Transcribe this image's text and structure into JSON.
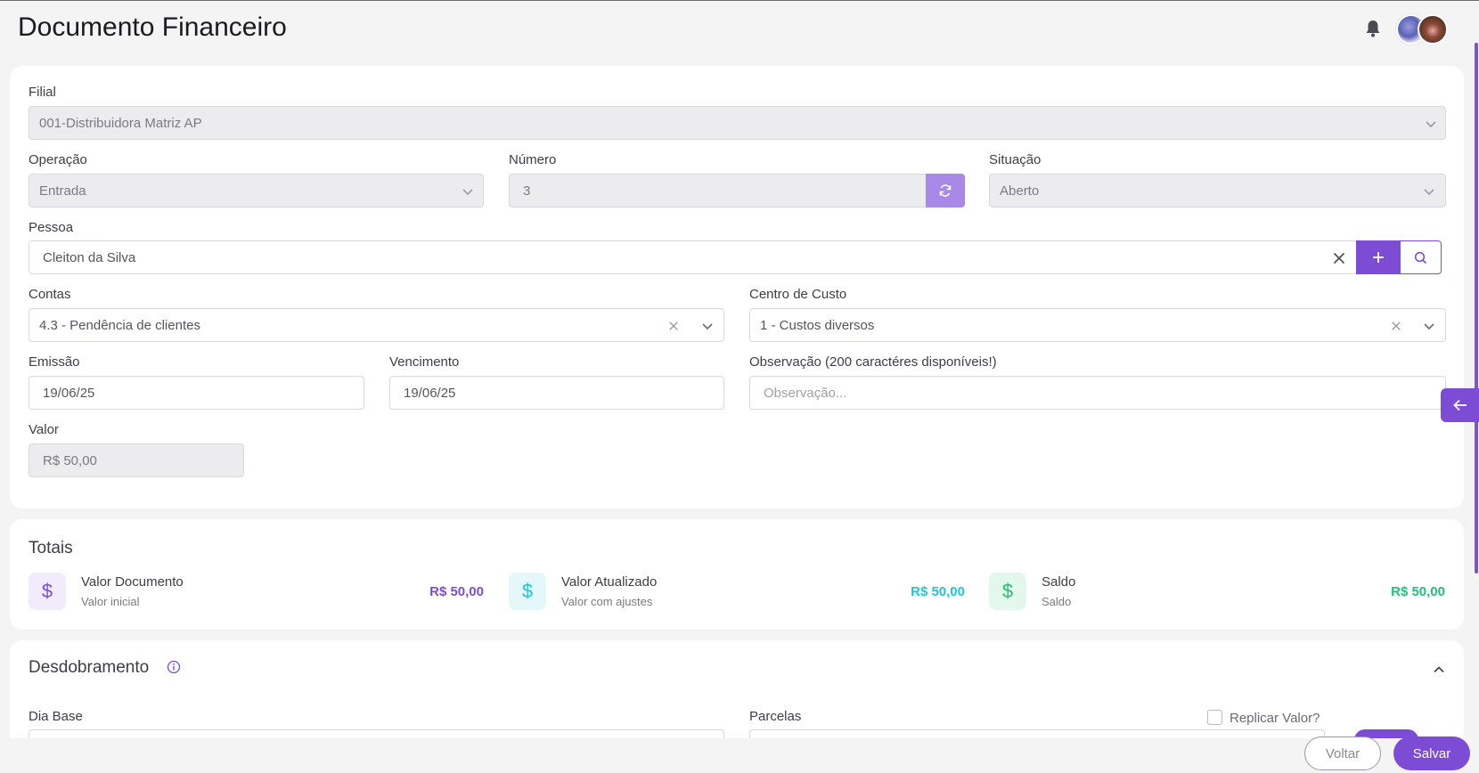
{
  "header": {
    "title": "Documento Financeiro"
  },
  "form": {
    "filial": {
      "label": "Filial",
      "value": "001-Distribuidora Matriz AP"
    },
    "operacao": {
      "label": "Operação",
      "value": "Entrada"
    },
    "numero": {
      "label": "Número",
      "value": "3"
    },
    "situacao": {
      "label": "Situação",
      "value": "Aberto"
    },
    "pessoa": {
      "label": "Pessoa",
      "value": "Cleiton da Silva"
    },
    "contas": {
      "label": "Contas",
      "value": "4.3 - Pendência de clientes"
    },
    "centro_custo": {
      "label": "Centro de Custo",
      "value": "1 - Custos diversos"
    },
    "emissao": {
      "label": "Emissão",
      "value": "19/06/25"
    },
    "vencimento": {
      "label": "Vencimento",
      "value": "19/06/25"
    },
    "observacao": {
      "label": "Observação (200 caractéres disponíveis!)",
      "placeholder": "Observação..."
    },
    "valor": {
      "label": "Valor",
      "value": "R$ 50,00"
    }
  },
  "totais": {
    "title": "Totais",
    "items": [
      {
        "title": "Valor Documento",
        "subtitle": "Valor inicial",
        "value": "R$ 50,00",
        "color": "#7c4dd4",
        "bg": "#f1ebfb",
        "icon": "dollar-icon"
      },
      {
        "title": "Valor Atualizado",
        "subtitle": "Valor com ajustes",
        "value": "R$ 50,00",
        "color": "#1fc6d6",
        "bg": "#e4f8fa",
        "icon": "dollar-icon"
      },
      {
        "title": "Saldo",
        "subtitle": "Saldo",
        "value": "R$ 50,00",
        "color": "#22c07a",
        "bg": "#e3f7ec",
        "icon": "dollar-icon"
      }
    ],
    "icon_glyph": "$"
  },
  "desdobramento": {
    "title": "Desdobramento",
    "dia_base_label": "Dia Base",
    "parcelas_label": "Parcelas",
    "replicar_label": "Replicar Valor?"
  },
  "footer": {
    "voltar": "Voltar",
    "salvar": "Salvar"
  },
  "colors": {
    "accent": "#7c4dd4",
    "accent_light": "#a989e8"
  }
}
